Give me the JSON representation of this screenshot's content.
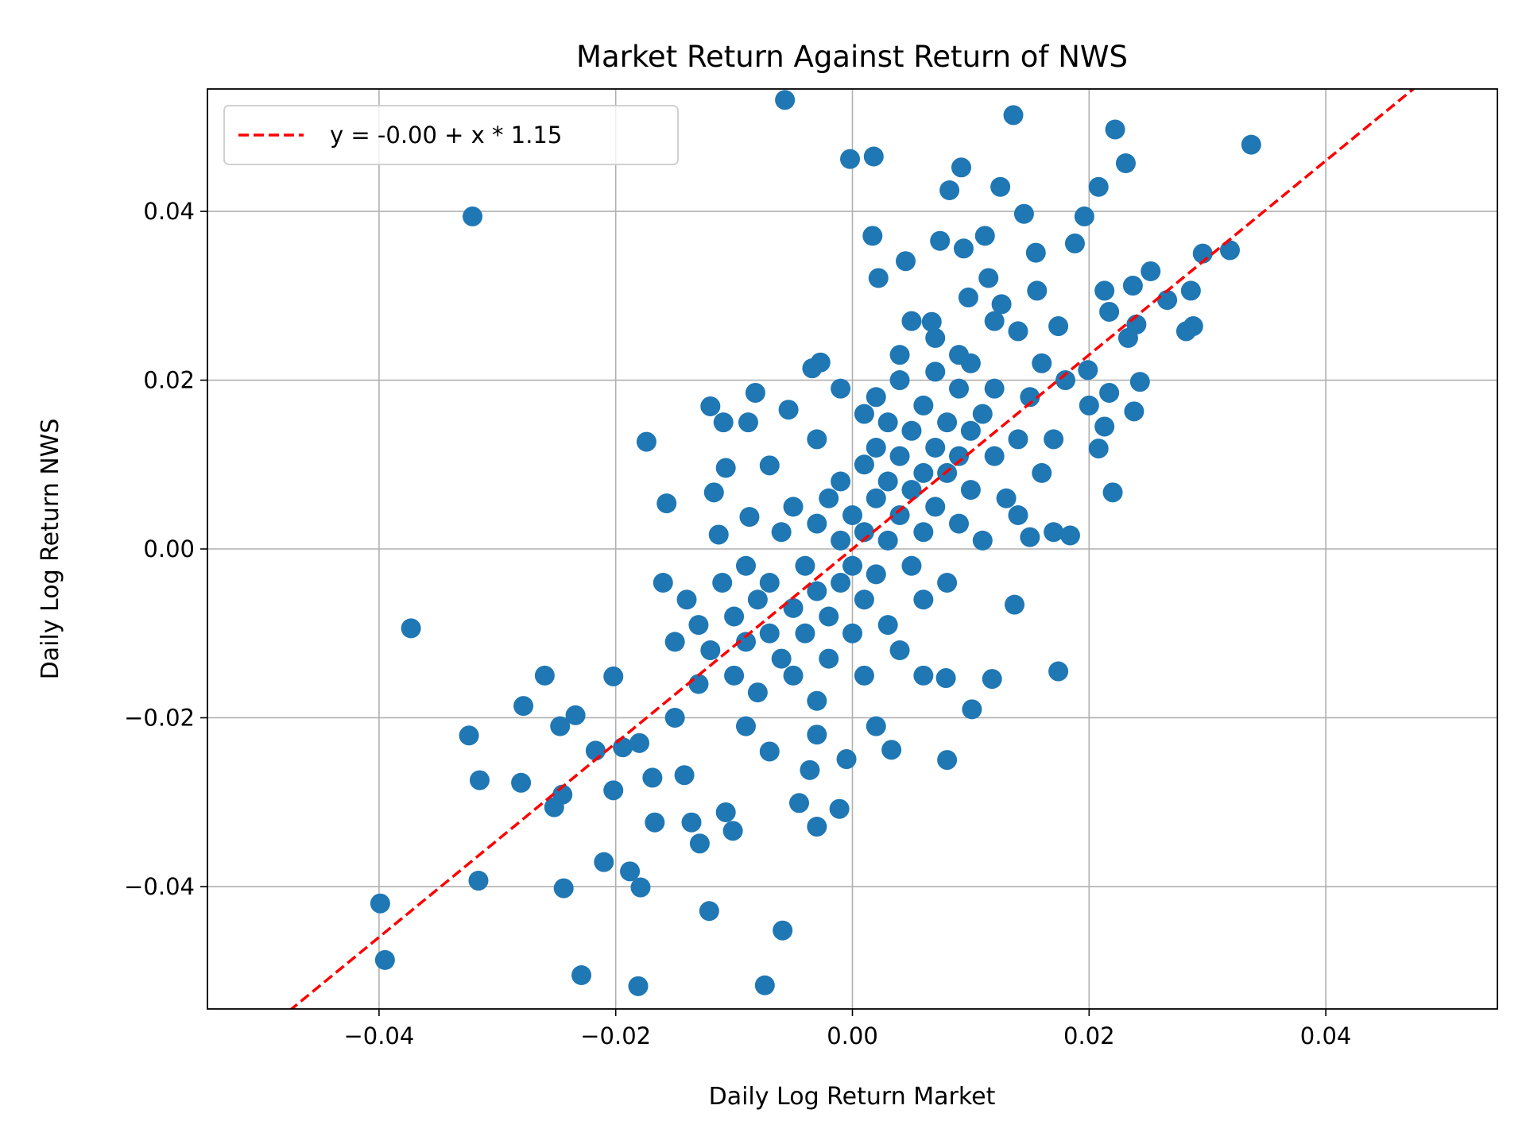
{
  "chart_data": {
    "type": "scatter",
    "title": "Market Return Against Return of NWS",
    "xlabel": "Daily Log Return Market",
    "ylabel": "Daily Log Return NWS",
    "xlim": [
      -0.0545,
      0.0545
    ],
    "ylim": [
      -0.0545,
      0.0545
    ],
    "xticks": [
      -0.04,
      -0.02,
      0.0,
      0.02,
      0.04
    ],
    "yticks": [
      -0.04,
      -0.02,
      0.0,
      0.02,
      0.04
    ],
    "xtick_labels": [
      "−0.04",
      "−0.02",
      "0.00",
      "0.02",
      "0.04"
    ],
    "ytick_labels": [
      "−0.04",
      "−0.02",
      "0.00",
      "0.02",
      "0.04"
    ],
    "grid": true,
    "legend_position": "top-left",
    "point_color": "#1f77b4",
    "fit_line": {
      "label": "y = -0.00 + x * 1.15",
      "intercept": 0.0,
      "slope": 1.15,
      "color": "#ff0000",
      "style": "dashed"
    },
    "points": [
      [
        -0.0057,
        0.0532
      ],
      [
        0.0136,
        0.0514
      ],
      [
        0.0222,
        0.0497
      ],
      [
        0.0337,
        0.0479
      ],
      [
        -0.0002,
        0.0462
      ],
      [
        0.0018,
        0.0465
      ],
      [
        0.0231,
        0.0457
      ],
      [
        0.0092,
        0.0452
      ],
      [
        -0.0321,
        0.0394
      ],
      [
        0.0125,
        0.0429
      ],
      [
        0.0082,
        0.0425
      ],
      [
        0.0208,
        0.0429
      ],
      [
        0.0145,
        0.0397
      ],
      [
        0.0196,
        0.0394
      ],
      [
        0.0017,
        0.0371
      ],
      [
        0.0112,
        0.0371
      ],
      [
        0.0074,
        0.0365
      ],
      [
        0.0094,
        0.0356
      ],
      [
        0.0188,
        0.0362
      ],
      [
        0.0155,
        0.0351
      ],
      [
        0.0296,
        0.035
      ],
      [
        0.0319,
        0.0354
      ],
      [
        0.0045,
        0.0341
      ],
      [
        0.0252,
        0.0329
      ],
      [
        0.0022,
        0.0321
      ],
      [
        0.0115,
        0.0321
      ],
      [
        0.0237,
        0.0312
      ],
      [
        0.0286,
        0.0306
      ],
      [
        0.0098,
        0.0298
      ],
      [
        0.0156,
        0.0306
      ],
      [
        0.0213,
        0.0306
      ],
      [
        0.0266,
        0.0295
      ],
      [
        0.0217,
        0.0281
      ],
      [
        0.0126,
        0.029
      ],
      [
        0.0067,
        0.0269
      ],
      [
        0.0174,
        0.0264
      ],
      [
        0.0288,
        0.0264
      ],
      [
        0.0282,
        0.0258
      ],
      [
        0.024,
        0.0266
      ],
      [
        0.0233,
        0.025
      ],
      [
        0.014,
        0.0258
      ],
      [
        -0.0027,
        0.0221
      ],
      [
        -0.0034,
        0.0214
      ],
      [
        0.0243,
        0.0198
      ],
      [
        0.0199,
        0.0212
      ],
      [
        0.0217,
        0.0185
      ],
      [
        0.0238,
        0.0163
      ],
      [
        0.0213,
        0.0145
      ],
      [
        0.0208,
        0.0119
      ],
      [
        -0.0082,
        0.0185
      ],
      [
        -0.012,
        0.0169
      ],
      [
        -0.0109,
        0.015
      ],
      [
        -0.0088,
        0.015
      ],
      [
        -0.0054,
        0.0165
      ],
      [
        -0.0174,
        0.0127
      ],
      [
        -0.0107,
        0.0096
      ],
      [
        -0.007,
        0.0099
      ],
      [
        -0.0157,
        0.0054
      ],
      [
        -0.0117,
        0.0067
      ],
      [
        -0.0113,
        0.0017
      ],
      [
        -0.0087,
        0.0038
      ],
      [
        0.022,
        0.0067
      ],
      [
        0.0184,
        0.0016
      ],
      [
        0.015,
        0.0014
      ],
      [
        0.0137,
        -0.0066
      ],
      [
        -0.0373,
        -0.0094
      ],
      [
        -0.026,
        -0.015
      ],
      [
        -0.0202,
        -0.0151
      ],
      [
        0.0174,
        -0.0145
      ],
      [
        0.0118,
        -0.0154
      ],
      [
        0.0079,
        -0.0153
      ],
      [
        0.0101,
        -0.019
      ],
      [
        -0.0278,
        -0.0186
      ],
      [
        -0.0324,
        -0.0221
      ],
      [
        -0.0234,
        -0.0197
      ],
      [
        -0.0247,
        -0.021
      ],
      [
        -0.0217,
        -0.0239
      ],
      [
        -0.0194,
        -0.0235
      ],
      [
        -0.0315,
        -0.0274
      ],
      [
        -0.028,
        -0.0277
      ],
      [
        -0.0245,
        -0.0291
      ],
      [
        -0.0252,
        -0.0306
      ],
      [
        -0.0202,
        -0.0286
      ],
      [
        -0.0169,
        -0.0271
      ],
      [
        -0.0142,
        -0.0268
      ],
      [
        -0.0167,
        -0.0324
      ],
      [
        -0.0129,
        -0.0349
      ],
      [
        -0.0136,
        -0.0324
      ],
      [
        -0.0107,
        -0.0312
      ],
      [
        -0.0101,
        -0.0334
      ],
      [
        -0.0045,
        -0.0301
      ],
      [
        -0.003,
        -0.0329
      ],
      [
        -0.0011,
        -0.0308
      ],
      [
        -0.0036,
        -0.0262
      ],
      [
        -0.0005,
        -0.0249
      ],
      [
        0.0033,
        -0.0238
      ],
      [
        0.008,
        -0.025
      ],
      [
        -0.021,
        -0.0371
      ],
      [
        -0.0188,
        -0.0382
      ],
      [
        -0.0316,
        -0.0393
      ],
      [
        -0.0244,
        -0.0402
      ],
      [
        -0.0179,
        -0.0401
      ],
      [
        -0.0399,
        -0.042
      ],
      [
        -0.0121,
        -0.0429
      ],
      [
        -0.0059,
        -0.0452
      ],
      [
        -0.0395,
        -0.0487
      ],
      [
        -0.0229,
        -0.0505
      ],
      [
        -0.0181,
        -0.0518
      ],
      [
        -0.0074,
        -0.0517
      ],
      [
        -0.016,
        -0.004
      ],
      [
        -0.014,
        -0.006
      ],
      [
        -0.015,
        -0.011
      ],
      [
        -0.013,
        -0.009
      ],
      [
        -0.012,
        -0.012
      ],
      [
        -0.011,
        -0.004
      ],
      [
        -0.01,
        -0.008
      ],
      [
        -0.01,
        -0.015
      ],
      [
        -0.009,
        -0.002
      ],
      [
        -0.009,
        -0.011
      ],
      [
        -0.008,
        -0.006
      ],
      [
        -0.008,
        -0.017
      ],
      [
        -0.007,
        -0.004
      ],
      [
        -0.007,
        -0.01
      ],
      [
        -0.006,
        0.002
      ],
      [
        -0.006,
        -0.013
      ],
      [
        -0.005,
        -0.007
      ],
      [
        -0.005,
        0.005
      ],
      [
        -0.005,
        -0.015
      ],
      [
        -0.004,
        -0.002
      ],
      [
        -0.004,
        -0.01
      ],
      [
        -0.003,
        0.003
      ],
      [
        -0.003,
        -0.005
      ],
      [
        -0.003,
        -0.018
      ],
      [
        -0.002,
        0.006
      ],
      [
        -0.002,
        -0.008
      ],
      [
        -0.002,
        -0.013
      ],
      [
        -0.001,
        0.001
      ],
      [
        -0.001,
        -0.004
      ],
      [
        -0.001,
        0.008
      ],
      [
        0.0,
        -0.01
      ],
      [
        0.0,
        0.004
      ],
      [
        0.0,
        -0.002
      ],
      [
        0.001,
        0.01
      ],
      [
        0.001,
        0.002
      ],
      [
        0.001,
        -0.006
      ],
      [
        0.001,
        -0.015
      ],
      [
        0.002,
        0.012
      ],
      [
        0.002,
        0.006
      ],
      [
        0.002,
        -0.003
      ],
      [
        0.002,
        0.018
      ],
      [
        0.003,
        0.008
      ],
      [
        0.003,
        0.001
      ],
      [
        0.003,
        -0.009
      ],
      [
        0.003,
        0.015
      ],
      [
        0.004,
        0.011
      ],
      [
        0.004,
        0.004
      ],
      [
        0.004,
        -0.012
      ],
      [
        0.004,
        0.02
      ],
      [
        0.005,
        0.014
      ],
      [
        0.005,
        0.007
      ],
      [
        0.005,
        -0.002
      ],
      [
        0.006,
        0.017
      ],
      [
        0.006,
        0.009
      ],
      [
        0.006,
        0.002
      ],
      [
        0.006,
        -0.006
      ],
      [
        0.007,
        0.021
      ],
      [
        0.007,
        0.012
      ],
      [
        0.007,
        0.005
      ],
      [
        0.008,
        0.015
      ],
      [
        0.008,
        0.009
      ],
      [
        0.008,
        -0.004
      ],
      [
        0.009,
        0.019
      ],
      [
        0.009,
        0.011
      ],
      [
        0.009,
        0.003
      ],
      [
        0.01,
        0.014
      ],
      [
        0.01,
        0.022
      ],
      [
        0.01,
        0.007
      ],
      [
        0.011,
        0.016
      ],
      [
        0.011,
        0.001
      ],
      [
        0.012,
        0.011
      ],
      [
        0.012,
        0.019
      ],
      [
        0.013,
        0.006
      ],
      [
        0.014,
        0.013
      ],
      [
        0.015,
        0.018
      ],
      [
        0.016,
        0.009
      ],
      [
        0.017,
        0.013
      ],
      [
        -0.018,
        -0.023
      ],
      [
        -0.015,
        -0.02
      ],
      [
        -0.013,
        -0.016
      ],
      [
        -0.009,
        -0.021
      ],
      [
        -0.007,
        -0.024
      ],
      [
        0.006,
        -0.015
      ],
      [
        0.002,
        -0.021
      ],
      [
        -0.003,
        -0.022
      ],
      [
        0.007,
        0.025
      ],
      [
        0.004,
        0.023
      ],
      [
        -0.001,
        0.019
      ],
      [
        0.001,
        0.016
      ],
      [
        -0.003,
        0.013
      ],
      [
        0.005,
        0.027
      ],
      [
        0.009,
        0.023
      ],
      [
        0.012,
        0.027
      ],
      [
        0.016,
        0.022
      ],
      [
        0.02,
        0.017
      ],
      [
        0.018,
        0.02
      ],
      [
        0.014,
        0.004
      ],
      [
        0.017,
        0.002
      ]
    ]
  }
}
